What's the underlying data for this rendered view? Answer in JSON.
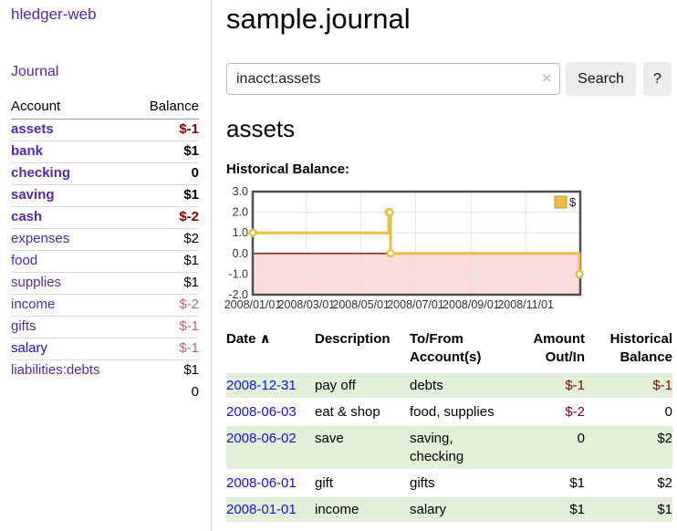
{
  "colors": {
    "link_purple": "#5629a3",
    "link_blue": "#1414d6",
    "negative_strong": "#8b0000",
    "negative_muted": "#b96c6c",
    "row_shade_green": "#e2efd9",
    "series_gold": "#e9bf4a",
    "chart_border": "#4f4f4f",
    "gridline": "#e3e3e3"
  },
  "sidebar": {
    "app_title": "hledger-web",
    "journal_label": "Journal",
    "accounts": {
      "col_account": "Account",
      "col_balance": "Balance",
      "rows": [
        {
          "name": "assets",
          "balance": "$-1",
          "depth": 1,
          "name_style": "purple",
          "bold": true,
          "balance_style": "bold-neg"
        },
        {
          "name": "bank",
          "balance": "$1",
          "depth": 2,
          "name_style": "purple",
          "bold": true,
          "balance_style": "bold"
        },
        {
          "name": "checking",
          "balance": "0",
          "depth": 3,
          "name_style": "purple",
          "bold": true,
          "balance_style": "bold"
        },
        {
          "name": "saving",
          "balance": "$1",
          "depth": 3,
          "name_style": "purple",
          "bold": true,
          "balance_style": "bold"
        },
        {
          "name": "cash",
          "balance": "$-2",
          "depth": 2,
          "name_style": "purple",
          "bold": true,
          "balance_style": "bold-neg"
        },
        {
          "name": "expenses",
          "balance": "$2",
          "depth": 1,
          "name_style": "purple",
          "bold": false,
          "balance_style": "plain"
        },
        {
          "name": "food",
          "balance": "$1",
          "depth": 2,
          "name_style": "purple",
          "bold": false,
          "balance_style": "plain"
        },
        {
          "name": "supplies",
          "balance": "$1",
          "depth": 2,
          "name_style": "purple",
          "bold": false,
          "balance_style": "plain"
        },
        {
          "name": "income",
          "balance": "$-2",
          "depth": 1,
          "name_style": "purple",
          "bold": false,
          "balance_style": "muted-neg"
        },
        {
          "name": "gifts",
          "balance": "$-1",
          "depth": 2,
          "name_style": "purple",
          "bold": false,
          "balance_style": "muted-neg"
        },
        {
          "name": "salary",
          "balance": "$-1",
          "depth": 2,
          "name_style": "blue",
          "bold": false,
          "balance_style": "muted-neg"
        },
        {
          "name": "liabilities:debts",
          "balance": "$1",
          "depth": 1,
          "name_style": "purple",
          "bold": false,
          "balance_style": "plain"
        }
      ],
      "total": "0"
    }
  },
  "header": {
    "title": "sample.journal"
  },
  "search": {
    "value": "inacct:assets",
    "clear_icon": "×",
    "button_label": "Search",
    "help_label": "?"
  },
  "main": {
    "account_heading": "assets",
    "chart_heading": "Historical Balance:"
  },
  "chart_data": {
    "type": "line",
    "style": "steps",
    "title": "Historical Balance",
    "series": [
      {
        "name": "$",
        "color": "#e9bf4a",
        "points": [
          [
            "2008-01-01",
            1
          ],
          [
            "2008-06-01",
            2
          ],
          [
            "2008-06-02",
            2
          ],
          [
            "2008-06-03",
            0
          ],
          [
            "2008-12-31",
            -1
          ]
        ]
      }
    ],
    "xlim": [
      "2008-01-01",
      "2009-01-01"
    ],
    "ylim": [
      -2,
      3
    ],
    "yticks": [
      3.0,
      2.0,
      1.0,
      0.0,
      -1.0,
      -2.0
    ],
    "xticks": [
      "2008/01/01",
      "2008/03/01",
      "2008/05/01",
      "2008/07/01",
      "2008/09/01",
      "2008/11/01"
    ],
    "legend": {
      "label": "$",
      "position": "top-right"
    },
    "grid": true,
    "negative_region_color": "#fcdbdb",
    "zero_line_color": "#8b0000"
  },
  "register": {
    "sort_icon": "∧",
    "headers": [
      {
        "lines": [
          "Date"
        ],
        "align": "left",
        "sort": true
      },
      {
        "lines": [
          "Description"
        ],
        "align": "left"
      },
      {
        "lines": [
          "To/From",
          "Account(s)"
        ],
        "align": "left"
      },
      {
        "lines": [
          "Amount",
          "Out/In"
        ],
        "align": "right"
      },
      {
        "lines": [
          "Historical",
          "Balance"
        ],
        "align": "right"
      }
    ],
    "rows": [
      {
        "date": "2008-12-31",
        "description": "pay off",
        "accounts": "debts",
        "amount": "$-1",
        "amount_negative": true,
        "balance": "$-1",
        "balance_negative": true,
        "shaded": true
      },
      {
        "date": "2008-06-03",
        "description": "eat & shop",
        "accounts": "food, supplies",
        "amount": "$-2",
        "amount_negative": true,
        "balance": "0",
        "balance_negative": false,
        "shaded": false
      },
      {
        "date": "2008-06-02",
        "description": "save",
        "accounts": "saving, checking",
        "amount": "0",
        "amount_negative": false,
        "balance": "$2",
        "balance_negative": false,
        "shaded": true
      },
      {
        "date": "2008-06-01",
        "description": "gift",
        "accounts": "gifts",
        "amount": "$1",
        "amount_negative": false,
        "balance": "$2",
        "balance_negative": false,
        "shaded": false
      },
      {
        "date": "2008-01-01",
        "description": "income",
        "accounts": "salary",
        "amount": "$1",
        "amount_negative": false,
        "balance": "$1",
        "balance_negative": false,
        "shaded": true
      }
    ]
  }
}
